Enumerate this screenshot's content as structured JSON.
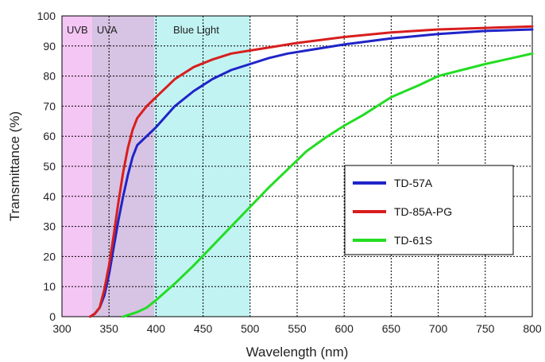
{
  "chart_data": {
    "type": "line",
    "xlabel": "Wavelength (nm)",
    "ylabel": "Transmittance (%)",
    "xlim": [
      300,
      800
    ],
    "ylim": [
      0,
      100
    ],
    "x_ticks": [
      300,
      350,
      400,
      450,
      500,
      550,
      600,
      650,
      700,
      750,
      800
    ],
    "y_ticks": [
      0,
      10,
      20,
      30,
      40,
      50,
      60,
      70,
      80,
      90,
      100
    ],
    "grid": true,
    "legend_position": "center-right",
    "bands": [
      {
        "label": "UVB",
        "from": 300,
        "to": 332,
        "color": "#f4c6f4"
      },
      {
        "label": "UVA",
        "from": 332,
        "to": 398,
        "color": "#d7c3e3"
      },
      {
        "label": "Blue Light",
        "from": 398,
        "to": 500,
        "color": "#c2f3f3"
      }
    ],
    "series": [
      {
        "name": "TD-57A",
        "color": "#1f24c8",
        "x": [
          330,
          335,
          340,
          345,
          350,
          355,
          360,
          365,
          370,
          375,
          380,
          390,
          400,
          420,
          440,
          460,
          480,
          500,
          520,
          540,
          560,
          600,
          650,
          700,
          750,
          800
        ],
        "y": [
          0,
          1,
          3,
          7,
          14,
          23,
          32,
          40,
          47,
          53,
          57,
          60,
          63,
          70,
          75,
          79,
          82,
          84,
          86,
          87.5,
          88.5,
          90.5,
          92.5,
          94,
          95,
          95.5
        ]
      },
      {
        "name": "TD-85A-PG",
        "color": "#d81e1e",
        "x": [
          330,
          335,
          340,
          345,
          350,
          355,
          360,
          365,
          370,
          375,
          380,
          390,
          400,
          420,
          440,
          460,
          480,
          500,
          550,
          600,
          650,
          700,
          750,
          800
        ],
        "y": [
          0,
          1,
          3,
          9,
          17,
          27,
          38,
          48,
          56,
          62,
          66,
          70,
          73,
          79,
          83,
          85.5,
          87.5,
          88.5,
          91,
          93,
          94.5,
          95.5,
          96,
          96.5
        ]
      },
      {
        "name": "TD-61S",
        "color": "#22dd22",
        "x": [
          365,
          370,
          380,
          390,
          400,
          420,
          440,
          460,
          480,
          500,
          520,
          540,
          560,
          580,
          600,
          620,
          650,
          680,
          700,
          750,
          800
        ],
        "y": [
          0,
          0.5,
          1.5,
          3,
          5.5,
          11,
          17,
          23.5,
          30,
          36.5,
          43,
          49,
          55,
          59.5,
          63.5,
          67,
          73,
          77,
          80,
          84,
          87.5
        ]
      }
    ]
  }
}
